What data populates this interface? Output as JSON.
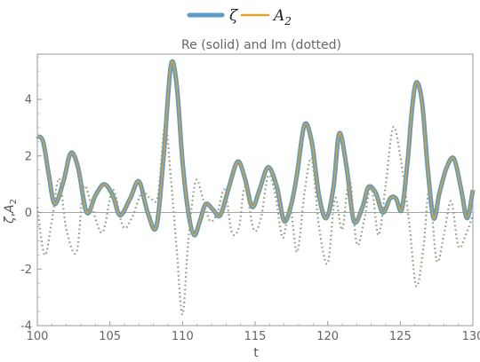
{
  "chart_data": {
    "type": "line",
    "title": "Re (solid) and Im (dotted)",
    "xlabel": "t",
    "ylabel_main": "ζ",
    "ylabel_sep": ",",
    "ylabel_A": "A",
    "ylabel_sub": "2",
    "xlim": [
      100,
      130
    ],
    "ylim": [
      -4,
      5.6
    ],
    "xticks": [
      "100",
      "105",
      "110",
      "115",
      "120",
      "125",
      "130"
    ],
    "yticks": [
      "-4",
      "-2",
      "0",
      "2",
      "4"
    ],
    "legend": {
      "position": "top-center",
      "entries": [
        {
          "name": "ζ",
          "sub": "",
          "color": "#5a9bc9"
        },
        {
          "name": "A",
          "sub": "2",
          "color": "#e0a030"
        }
      ]
    },
    "series": [
      {
        "name": "Re",
        "style": "solid",
        "x": [
          100.0,
          100.4,
          100.8,
          101.2,
          101.8,
          102.3,
          102.8,
          103.4,
          104.0,
          104.6,
          105.2,
          105.7,
          106.4,
          107.0,
          107.6,
          108.2,
          108.7,
          109.2,
          109.6,
          110.0,
          110.4,
          110.8,
          111.2,
          111.6,
          112.1,
          112.6,
          113.2,
          113.8,
          114.3,
          114.8,
          115.3,
          115.9,
          116.5,
          117.0,
          117.5,
          117.9,
          118.4,
          118.9,
          119.4,
          119.9,
          120.4,
          120.8,
          121.3,
          121.8,
          122.4,
          122.8,
          123.3,
          123.8,
          124.3,
          124.7,
          125.1,
          125.5,
          125.8,
          126.1,
          126.5,
          126.9,
          127.3,
          127.7,
          128.2,
          128.7,
          129.2,
          129.6,
          130.0
        ],
        "y": [
          2.7,
          2.5,
          1.3,
          0.3,
          1.1,
          2.1,
          1.6,
          0.0,
          0.6,
          1.0,
          0.6,
          -0.1,
          0.5,
          1.1,
          0.0,
          -0.5,
          2.0,
          5.2,
          4.5,
          1.8,
          0.0,
          -0.8,
          -0.3,
          0.3,
          0.1,
          -0.1,
          0.9,
          1.8,
          1.2,
          0.2,
          0.8,
          1.6,
          0.9,
          -0.3,
          0.3,
          1.4,
          3.1,
          2.5,
          0.6,
          -0.2,
          0.9,
          2.8,
          1.6,
          -0.3,
          0.2,
          0.9,
          0.7,
          0.0,
          0.5,
          0.5,
          0.1,
          1.8,
          3.6,
          4.6,
          3.9,
          1.5,
          -0.2,
          0.7,
          1.6,
          1.9,
          0.8,
          -0.2,
          0.8
        ]
      },
      {
        "name": "Im",
        "style": "dotted",
        "x": [
          100.0,
          100.5,
          101.0,
          101.5,
          102.0,
          102.7,
          103.2,
          103.8,
          104.5,
          105.2,
          105.9,
          106.5,
          107.2,
          107.8,
          108.3,
          108.8,
          109.2,
          109.6,
          110.0,
          110.4,
          110.9,
          111.4,
          111.9,
          112.4,
          112.9,
          113.4,
          113.9,
          114.3,
          114.9,
          115.4,
          115.9,
          116.4,
          116.9,
          117.4,
          117.9,
          118.4,
          118.9,
          119.4,
          120.0,
          120.5,
          121.0,
          121.5,
          122.0,
          122.5,
          123.0,
          123.5,
          124.0,
          124.5,
          125.0,
          125.6,
          126.1,
          126.6,
          127.0,
          127.5,
          128.0,
          128.5,
          129.0,
          129.5,
          130.0
        ],
        "y": [
          0.2,
          -1.5,
          -0.3,
          1.2,
          -0.6,
          -1.4,
          0.9,
          0.1,
          -0.7,
          0.8,
          -0.5,
          -0.2,
          0.7,
          0.5,
          0.6,
          3.1,
          1.2,
          -1.3,
          -3.6,
          -1.0,
          1.1,
          0.5,
          -0.3,
          0.0,
          0.8,
          -0.7,
          -0.5,
          0.9,
          -0.6,
          -0.2,
          1.3,
          0.6,
          -0.9,
          0.2,
          -1.4,
          0.7,
          1.9,
          -0.5,
          -1.8,
          0.5,
          -0.6,
          1.2,
          -1.1,
          -0.3,
          0.9,
          -0.8,
          1.0,
          3.0,
          2.0,
          -0.3,
          -2.6,
          -1.2,
          0.8,
          -1.7,
          -0.8,
          0.4,
          -1.2,
          -0.8,
          -0.1
        ]
      }
    ]
  }
}
